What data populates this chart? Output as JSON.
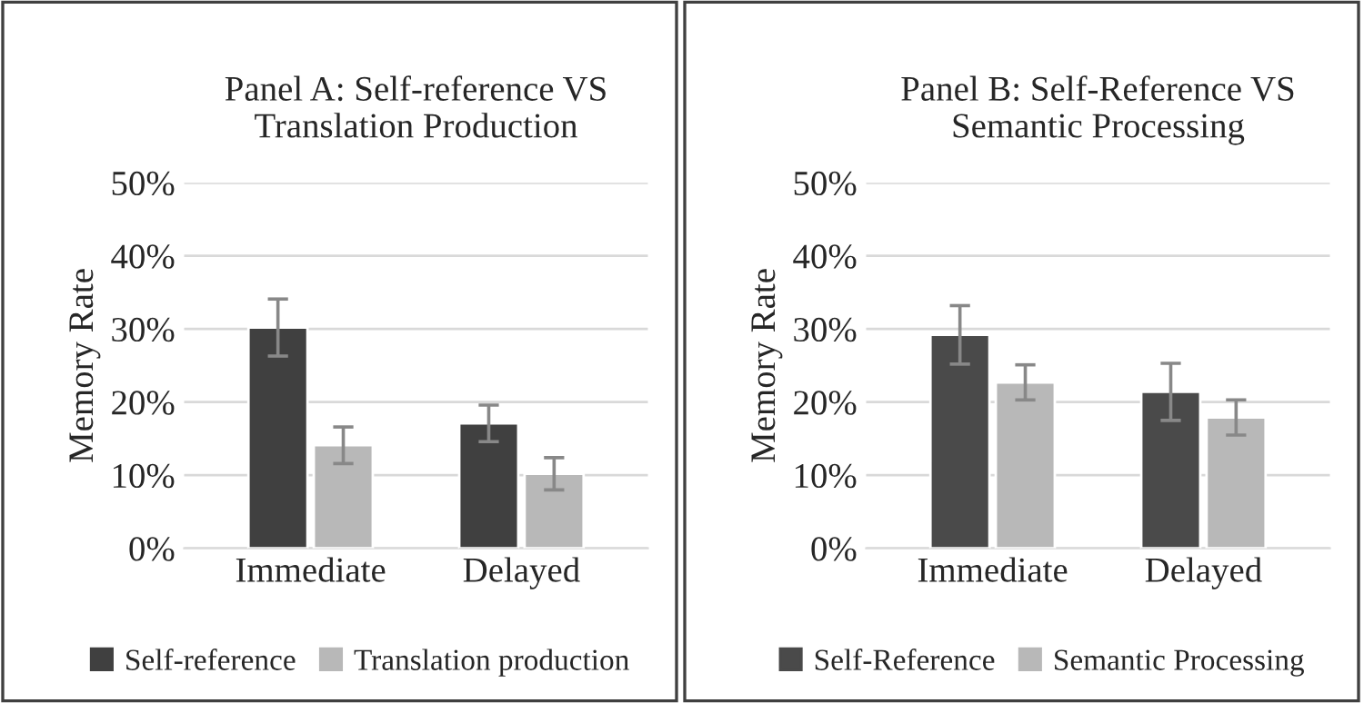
{
  "chart_data": [
    {
      "type": "bar",
      "title": "Panel A: Self-reference VS\nTranslation Production",
      "ylabel": "Memory Rate",
      "categories": [
        "Immediate",
        "Delayed"
      ],
      "ylim": [
        0,
        50
      ],
      "yticks": [
        {
          "value": 0,
          "label": "0%"
        },
        {
          "value": 10,
          "label": "10%"
        },
        {
          "value": 20,
          "label": "20%"
        },
        {
          "value": 30,
          "label": "30%"
        },
        {
          "value": 40,
          "label": "40%"
        },
        {
          "value": 50,
          "label": "50%"
        }
      ],
      "grid": "y",
      "legend": "bottom",
      "series": [
        {
          "name": "Self-reference",
          "color": "#404040",
          "values": [
            30.2,
            17.1
          ],
          "errors": [
            3.9,
            2.5
          ]
        },
        {
          "name": "Translation production",
          "color": "#b8b8b8",
          "values": [
            14.1,
            10.2
          ],
          "errors": [
            2.5,
            2.2
          ]
        }
      ]
    },
    {
      "type": "bar",
      "title": "Panel B: Self-Reference VS\nSemantic Processing",
      "ylabel": "Memory Rate",
      "categories": [
        "Immediate",
        "Delayed"
      ],
      "ylim": [
        0,
        50
      ],
      "yticks": [
        {
          "value": 0,
          "label": "0%"
        },
        {
          "value": 10,
          "label": "10%"
        },
        {
          "value": 20,
          "label": "20%"
        },
        {
          "value": 30,
          "label": "30%"
        },
        {
          "value": 40,
          "label": "40%"
        },
        {
          "value": 50,
          "label": "50%"
        }
      ],
      "grid": "y",
      "legend": "bottom",
      "series": [
        {
          "name": "Self-Reference",
          "color": "#4a4a4a",
          "values": [
            29.2,
            21.4
          ],
          "errors": [
            4.0,
            3.9
          ]
        },
        {
          "name": "Semantic Processing",
          "color": "#b8b8b8",
          "values": [
            22.7,
            17.9
          ],
          "errors": [
            2.4,
            2.4
          ]
        }
      ]
    }
  ]
}
